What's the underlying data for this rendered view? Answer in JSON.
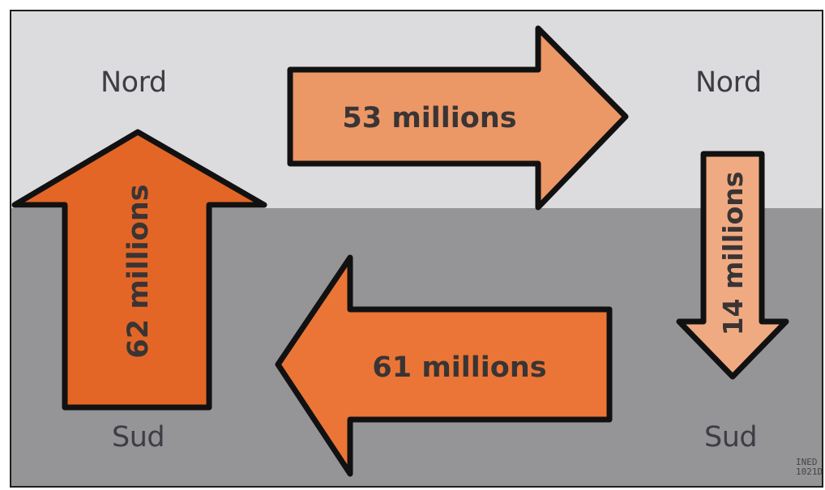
{
  "regions": {
    "top_left": "Nord",
    "top_right": "Nord",
    "bottom_left": "Sud",
    "bottom_right": "Sud"
  },
  "flows": {
    "north_to_north": "53 millions",
    "south_to_north": "62 millions",
    "south_to_south": "61 millions",
    "north_to_south": "14 millions"
  },
  "credit": {
    "line1": "INED",
    "line2": "1021D"
  },
  "colors": {
    "band_north": "#dcdcde",
    "band_south": "#959597",
    "arrow_north_to_north": "#ec9766",
    "arrow_south_to_north": "#e36626",
    "arrow_south_to_south": "#ea7536",
    "arrow_north_to_south": "#f0aa82",
    "outline": "#111111"
  }
}
